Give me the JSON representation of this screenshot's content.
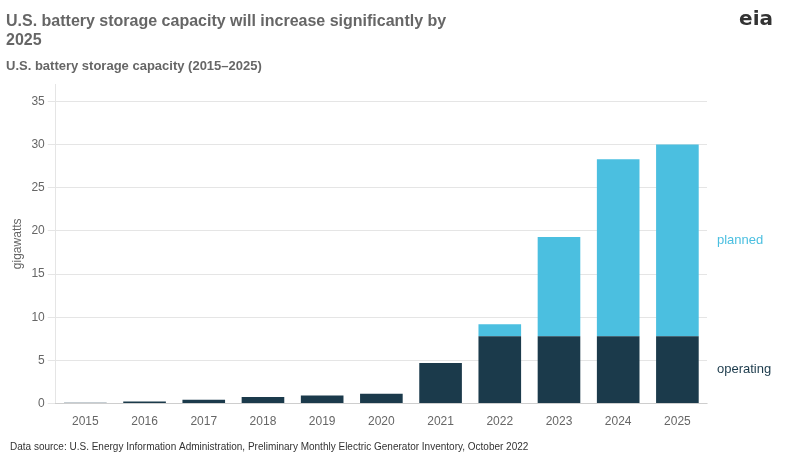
{
  "chart_data": {
    "type": "bar",
    "stacked": true,
    "title": [
      "U.S. battery storage capacity will increase significantly by",
      "2025"
    ],
    "subtitle": "U.S. battery storage capacity (2015–2025)",
    "ylabel": "gigawatts",
    "categories": [
      "2015",
      "2016",
      "2017",
      "2018",
      "2019",
      "2020",
      "2021",
      "2022",
      "2023",
      "2024",
      "2025"
    ],
    "series": [
      {
        "name": "operating",
        "color": "#1B3A4B",
        "values": [
          0.1,
          0.25,
          0.45,
          0.75,
          0.95,
          1.15,
          4.7,
          7.8,
          7.8,
          7.8,
          7.8
        ]
      },
      {
        "name": "planned",
        "color": "#4BBFE0",
        "values": [
          0.0,
          0.0,
          0.0,
          0.0,
          0.0,
          0.0,
          0.0,
          1.4,
          11.5,
          20.5,
          22.2
        ]
      }
    ],
    "ylim": [
      0,
      37
    ],
    "yticks": [
      0,
      5,
      10,
      15,
      20,
      25,
      30,
      35
    ],
    "grid": true,
    "annotations": [
      "eia",
      "Data source: U.S. Energy Information Administration, Preliminary Monthly Electric Generator Inventory, October 2022"
    ]
  }
}
